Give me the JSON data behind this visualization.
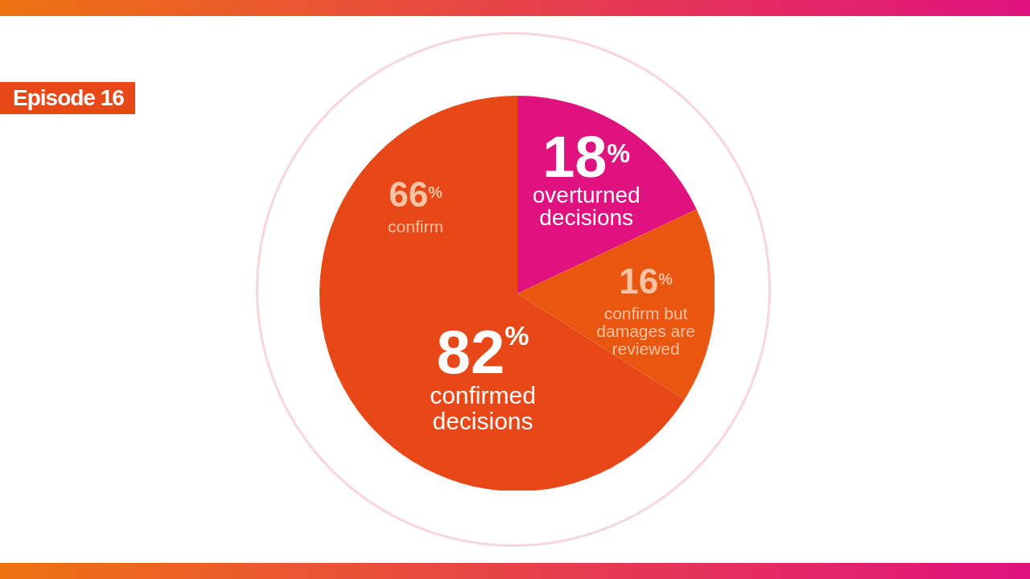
{
  "chart_data": {
    "type": "pie",
    "title": "Episode 16",
    "categories": [
      "overturned decisions",
      "confirm but damages are reviewed",
      "confirm"
    ],
    "values": [
      18,
      16,
      66
    ],
    "colors": [
      "#e0127f",
      "#e8560f",
      "#e84718"
    ],
    "value_labels": [
      "18$^{%}$",
      "16$^{%}$",
      "66$^{%}$"
    ],
    "annotations": [
      "82% confirmed decisions"
    ]
  }
}
